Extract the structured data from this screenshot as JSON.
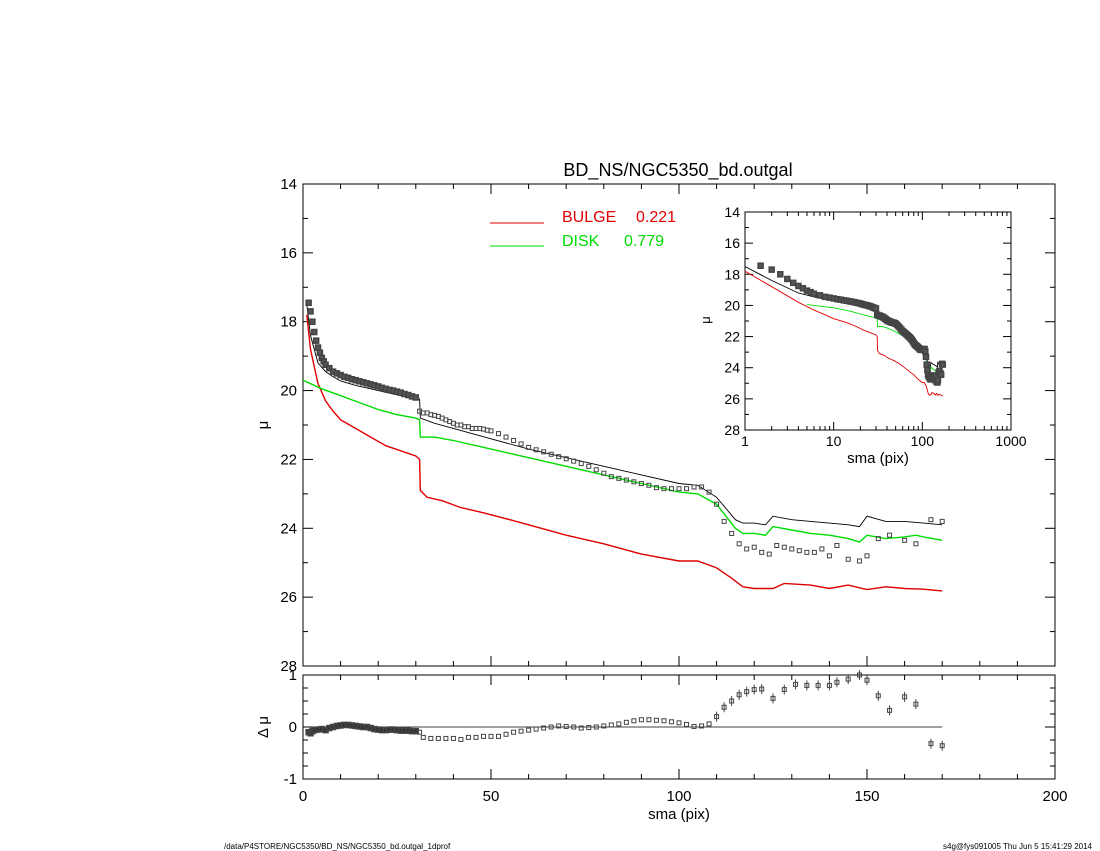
{
  "footer": {
    "left": "/data/P4STORE/NGC5350/BD_NS/NGC5350_bd.outgal_1dprof",
    "right": "s4g@fys091005  Thu Jun  5 15:41:29 2014"
  },
  "chart_data": [
    {
      "type": "line",
      "title": "BD_NS/NGC5350_bd.outgal",
      "ylabel": "μ",
      "xlim": [
        0,
        200
      ],
      "ylim": [
        28,
        14
      ],
      "y_reversed": true,
      "yticks": [
        "14",
        "16",
        "18",
        "20",
        "22",
        "24",
        "26",
        "28"
      ],
      "legend_placement": "top-center",
      "legend": [
        {
          "name": "BULGE",
          "value": "0.221",
          "color": "#e00000"
        },
        {
          "name": "DISK",
          "value": "0.779",
          "color": "#00dd00"
        }
      ],
      "series": [
        {
          "name": "BULGE",
          "color": "#e00000",
          "x": [
            1,
            2,
            4,
            6,
            8,
            10,
            14,
            18,
            22,
            26,
            30,
            31,
            31.2,
            33,
            37,
            42,
            48,
            55,
            60,
            70,
            80,
            90,
            100,
            105,
            110,
            114,
            117,
            120,
            125,
            128,
            135,
            140,
            145,
            150,
            155,
            160,
            165,
            170
          ],
          "y": [
            17.8,
            18.8,
            19.8,
            20.3,
            20.6,
            20.85,
            21.1,
            21.35,
            21.6,
            21.75,
            21.9,
            22.0,
            22.9,
            23.1,
            23.2,
            23.4,
            23.55,
            23.75,
            23.9,
            24.2,
            24.45,
            24.75,
            24.95,
            24.95,
            25.15,
            25.45,
            25.7,
            25.75,
            25.75,
            25.6,
            25.65,
            25.75,
            25.65,
            25.78,
            25.7,
            25.75,
            25.77,
            25.82
          ]
        },
        {
          "name": "DISK",
          "color": "#00dd00",
          "x": [
            0,
            5,
            10,
            15,
            20,
            25,
            30,
            31,
            31.2,
            35,
            40,
            50,
            60,
            70,
            80,
            90,
            100,
            105,
            110,
            115,
            117,
            120,
            123,
            125,
            130,
            135,
            140,
            145,
            148,
            150,
            155,
            160,
            163,
            165,
            170
          ],
          "y": [
            19.7,
            19.95,
            20.15,
            20.35,
            20.55,
            20.7,
            20.8,
            20.85,
            21.35,
            21.35,
            21.45,
            21.7,
            21.95,
            22.2,
            22.45,
            22.7,
            22.95,
            23.0,
            23.3,
            24.0,
            24.15,
            24.15,
            24.2,
            23.95,
            24.05,
            24.15,
            24.2,
            24.3,
            24.4,
            24.2,
            24.3,
            24.25,
            24.2,
            24.25,
            24.35
          ]
        },
        {
          "name": "total",
          "color": "#000000",
          "x": [
            1,
            2,
            4,
            6,
            8,
            10,
            14,
            18,
            22,
            26,
            30,
            31,
            31.2,
            35,
            40,
            50,
            60,
            70,
            80,
            90,
            100,
            105,
            110,
            115,
            117,
            120,
            123,
            125,
            130,
            135,
            140,
            145,
            148,
            150,
            155,
            160,
            165,
            170
          ],
          "y": [
            17.5,
            18.4,
            19.2,
            19.45,
            19.6,
            19.72,
            19.85,
            19.95,
            20.05,
            20.15,
            20.2,
            20.25,
            20.8,
            20.95,
            21.1,
            21.4,
            21.7,
            21.95,
            22.2,
            22.45,
            22.7,
            22.75,
            23.1,
            23.75,
            23.85,
            23.85,
            23.9,
            23.65,
            23.75,
            23.8,
            23.85,
            23.9,
            23.95,
            23.65,
            23.8,
            23.8,
            23.85,
            23.9
          ]
        },
        {
          "name": "data",
          "marker": "square",
          "x": [
            1.5,
            2,
            2.5,
            3,
            3.5,
            4,
            4.5,
            5,
            5.5,
            6,
            7,
            8,
            9,
            10,
            11,
            12,
            13,
            14,
            15,
            16,
            17,
            18,
            19,
            20,
            21,
            22,
            23,
            24,
            25,
            26,
            27,
            28,
            29,
            30,
            31,
            32,
            33,
            34,
            35,
            36,
            37,
            38,
            39,
            40,
            41,
            42,
            43,
            44,
            45,
            46,
            47,
            48,
            49,
            50,
            52,
            54,
            56,
            58,
            60,
            62,
            64,
            66,
            68,
            70,
            72,
            74,
            76,
            78,
            80,
            82,
            84,
            86,
            88,
            90,
            92,
            94,
            96,
            98,
            100,
            102,
            104,
            106,
            108,
            110,
            112,
            114,
            116,
            118,
            120,
            122,
            124,
            126,
            128,
            130,
            132,
            134,
            136,
            138,
            140,
            142,
            145,
            148,
            150,
            153,
            156,
            160,
            163,
            167,
            170
          ],
          "y": [
            17.45,
            17.7,
            18.0,
            18.3,
            18.55,
            18.75,
            18.9,
            19.05,
            19.15,
            19.25,
            19.35,
            19.45,
            19.5,
            19.55,
            19.6,
            19.63,
            19.67,
            19.7,
            19.73,
            19.76,
            19.79,
            19.82,
            19.85,
            19.88,
            19.92,
            19.95,
            19.98,
            20.0,
            20.03,
            20.06,
            20.1,
            20.13,
            20.17,
            20.2,
            20.6,
            20.65,
            20.65,
            20.7,
            20.72,
            20.75,
            20.8,
            20.85,
            20.9,
            20.95,
            21.0,
            21.0,
            21.05,
            21.05,
            21.1,
            21.1,
            21.1,
            21.12,
            21.15,
            21.17,
            21.25,
            21.35,
            21.45,
            21.55,
            21.65,
            21.72,
            21.78,
            21.85,
            21.92,
            21.98,
            22.05,
            22.12,
            22.2,
            22.3,
            22.4,
            22.5,
            22.55,
            22.6,
            22.65,
            22.7,
            22.75,
            22.82,
            22.85,
            22.85,
            22.85,
            22.85,
            22.8,
            22.8,
            22.95,
            23.3,
            23.8,
            24.15,
            24.45,
            24.6,
            24.55,
            24.7,
            24.75,
            24.5,
            24.55,
            24.6,
            24.65,
            24.7,
            24.7,
            24.6,
            24.8,
            24.5,
            24.9,
            24.95,
            24.8,
            24.3,
            24.2,
            24.35,
            24.45,
            23.75,
            23.8
          ]
        }
      ],
      "inset": {
        "type": "line",
        "xlabel": "sma (pix)",
        "ylabel": "μ",
        "x_scale": "log",
        "xlim": [
          1,
          1000
        ],
        "ylim": [
          28,
          14
        ],
        "y_reversed": true,
        "xticks": [
          "1",
          "10",
          "100",
          "1000"
        ],
        "yticks": [
          "14",
          "16",
          "18",
          "20",
          "22",
          "24",
          "26",
          "28"
        ]
      }
    },
    {
      "type": "scatter",
      "xlabel": "sma (pix)",
      "ylabel": "Δ μ",
      "xlim": [
        0,
        200
      ],
      "ylim": [
        -1,
        1
      ],
      "xticks": [
        "0",
        "50",
        "100",
        "150",
        "200"
      ],
      "yticks": [
        "1",
        "0",
        "-1"
      ],
      "reference_line": {
        "y": 0,
        "x_range": [
          0,
          170
        ]
      },
      "series": [
        {
          "name": "residual",
          "marker": "square",
          "x": [
            1.5,
            2,
            2.5,
            3,
            4,
            5,
            6,
            7,
            8,
            9,
            10,
            11,
            12,
            13,
            14,
            15,
            16,
            17,
            18,
            19,
            20,
            21,
            22,
            23,
            24,
            25,
            26,
            27,
            28,
            29,
            30,
            31,
            32,
            34,
            36,
            38,
            40,
            42,
            44,
            46,
            48,
            50,
            52,
            54,
            56,
            58,
            60,
            62,
            64,
            66,
            68,
            70,
            72,
            74,
            76,
            78,
            80,
            82,
            84,
            86,
            88,
            90,
            92,
            94,
            96,
            98,
            100,
            102,
            104,
            106,
            108,
            110,
            112,
            114,
            116,
            118,
            120,
            122,
            125,
            128,
            131,
            134,
            137,
            140,
            142,
            145,
            148,
            150,
            153,
            156,
            160,
            163,
            167,
            170
          ],
          "y": [
            -0.1,
            -0.12,
            -0.08,
            -0.06,
            -0.05,
            -0.04,
            -0.06,
            -0.02,
            0.0,
            0.02,
            0.03,
            0.04,
            0.04,
            0.03,
            0.02,
            0.01,
            0.0,
            0.0,
            -0.02,
            -0.04,
            -0.05,
            -0.06,
            -0.06,
            -0.05,
            -0.05,
            -0.06,
            -0.07,
            -0.07,
            -0.07,
            -0.08,
            -0.08,
            -0.1,
            -0.2,
            -0.22,
            -0.22,
            -0.22,
            -0.22,
            -0.24,
            -0.2,
            -0.2,
            -0.18,
            -0.18,
            -0.18,
            -0.14,
            -0.1,
            -0.08,
            -0.06,
            -0.04,
            -0.02,
            0.0,
            0.02,
            0.01,
            0.0,
            -0.02,
            -0.01,
            0.0,
            0.02,
            0.04,
            0.06,
            0.09,
            0.12,
            0.14,
            0.14,
            0.13,
            0.12,
            0.1,
            0.08,
            0.05,
            0.01,
            0.02,
            0.06,
            0.2,
            0.38,
            0.5,
            0.62,
            0.68,
            0.72,
            0.73,
            0.55,
            0.72,
            0.82,
            0.8,
            0.8,
            0.8,
            0.86,
            0.92,
            1.0,
            0.9,
            0.6,
            0.32,
            0.58,
            0.44,
            -0.32,
            -0.36
          ]
        }
      ]
    }
  ]
}
